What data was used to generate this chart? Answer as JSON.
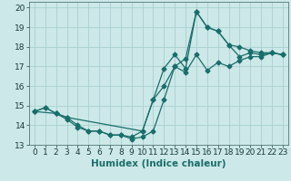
{
  "xlabel": "Humidex (Indice chaleur)",
  "ylabel": "",
  "xlim": [
    -0.5,
    23.5
  ],
  "ylim": [
    13,
    20.3
  ],
  "yticks": [
    13,
    14,
    15,
    16,
    17,
    18,
    19,
    20
  ],
  "xticks": [
    0,
    1,
    2,
    3,
    4,
    5,
    6,
    7,
    8,
    9,
    10,
    11,
    12,
    13,
    14,
    15,
    16,
    17,
    18,
    19,
    20,
    21,
    22,
    23
  ],
  "background_color": "#cce8e8",
  "grid_color": "#aad0d0",
  "line_color": "#1a6e6a",
  "line1_x": [
    0,
    1,
    2,
    3,
    4,
    5,
    6,
    7,
    8,
    9,
    10,
    11,
    12,
    13,
    14,
    15,
    16,
    17,
    18,
    19,
    20,
    21,
    22,
    23
  ],
  "line1_y": [
    14.7,
    14.9,
    14.6,
    14.3,
    13.9,
    13.7,
    13.7,
    13.5,
    13.5,
    13.3,
    13.4,
    13.7,
    15.3,
    17.0,
    16.7,
    17.6,
    16.8,
    17.2,
    17.0,
    17.3,
    17.5,
    17.5,
    17.7,
    17.6
  ],
  "line2_x": [
    0,
    1,
    2,
    3,
    4,
    5,
    6,
    7,
    8,
    9,
    10,
    11,
    12,
    13,
    14,
    15,
    16,
    17,
    18,
    19,
    20,
    21,
    22,
    23
  ],
  "line2_y": [
    14.7,
    14.9,
    14.6,
    14.4,
    14.0,
    13.7,
    13.7,
    13.5,
    13.5,
    13.4,
    13.7,
    15.3,
    16.9,
    17.6,
    16.9,
    19.8,
    19.0,
    18.8,
    18.1,
    17.5,
    17.7,
    17.6,
    17.7,
    17.6
  ],
  "line3_x": [
    0,
    2,
    3,
    10,
    11,
    12,
    13,
    14,
    15,
    16,
    17,
    18,
    19,
    20,
    21,
    22,
    23
  ],
  "line3_y": [
    14.7,
    14.6,
    14.4,
    13.7,
    15.3,
    16.0,
    17.0,
    17.4,
    19.8,
    19.0,
    18.8,
    18.1,
    18.0,
    17.8,
    17.7,
    17.7,
    17.6
  ],
  "tick_fontsize": 6.5,
  "xlabel_fontsize": 7.5,
  "xlabel_color": "#1a6e6a"
}
